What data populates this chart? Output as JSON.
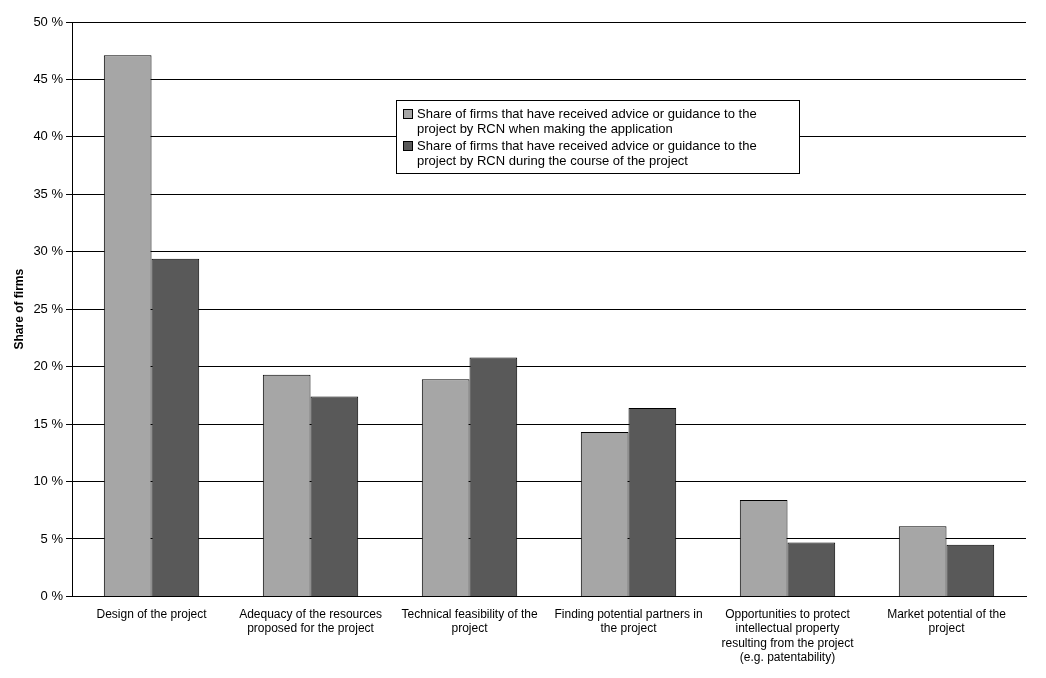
{
  "chart_data": {
    "type": "bar",
    "ylabel": "Share of firms",
    "categories": [
      "Design of the project",
      "Adequacy of the resources proposed for the project",
      "Technical feasibility of the project",
      "Finding potential partners in the project",
      "Opportunities to protect intellectual property resulting from the project (e.g. patentability)",
      "Market potential of the project"
    ],
    "series": [
      {
        "name": "Share of firms that have received advice or guidance to the project by RCN when making the application",
        "color": "#a6a6a6",
        "values": [
          47.1,
          19.3,
          18.9,
          14.3,
          8.4,
          6.1
        ]
      },
      {
        "name": "Share of firms that have received advice or guidance to the project by RCN during the course of the project",
        "color": "#595959",
        "values": [
          29.4,
          17.4,
          20.8,
          16.4,
          4.7,
          4.5
        ]
      }
    ],
    "ylim": [
      0,
      50
    ],
    "yticks": [
      {
        "value": 0,
        "label": "0 %"
      },
      {
        "value": 5,
        "label": "5 %"
      },
      {
        "value": 10,
        "label": "10 %"
      },
      {
        "value": 15,
        "label": "15 %"
      },
      {
        "value": 20,
        "label": "20 %"
      },
      {
        "value": 25,
        "label": "25 %"
      },
      {
        "value": 30,
        "label": "30 %"
      },
      {
        "value": 35,
        "label": "35 %"
      },
      {
        "value": 40,
        "label": "40 %"
      },
      {
        "value": 45,
        "label": "45 %"
      },
      {
        "value": 50,
        "label": "50 %"
      }
    ],
    "grid": "y",
    "legend": "top"
  }
}
